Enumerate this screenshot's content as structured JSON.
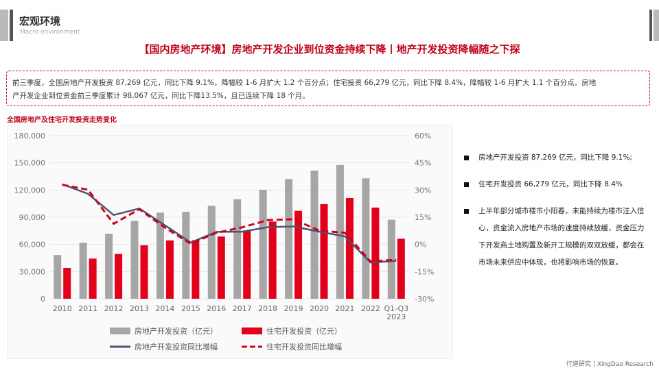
{
  "header": {
    "section_title": "宏观环境",
    "section_subtitle": "Macro environment"
  },
  "headline": "【国内房地产环境】房地产开发企业到位资金持续下降丨地产开发投资降幅随之下探",
  "summary": {
    "line1": "前三季度，全国房地产开发投资 87,269 亿元，同比下降 9.1%，降幅较 1-6 月扩大 1.2 个百分点；住宅投资 66,279 亿元，同比下降 8.4%，降幅较 1-6 月扩大 1.1 个百分点。房地",
    "line2": "产开发企业到位资金前三季度累计 98,067 亿元，同比下降13.5%，且已连续下降 18 个月。"
  },
  "chart_title": "全国房地产及住宅开发投资走势变化",
  "bullets": [
    "房地产开发投资 87,269 亿元，同比下降 9.1%;",
    "住宅开发投资 66,279 亿元，同比下降 8.4%",
    "上半年部分城市楼市小阳春，未能持续为楼市注入信心，资金流入房地产市场的速度持续放缓，资金压力下开发商土地购置及新开工规模的双双放缓，都会在市场未来供应中体现，也将影响市场的恢复。"
  ],
  "footer": "行道研究丨XingDao Research",
  "colors": {
    "accent": "#c0001a",
    "bar_total": "#a6a6a6",
    "bar_residential": "#e2001a",
    "line_total": "#4a5470",
    "line_residential": "#d0021b"
  },
  "chart_data": {
    "type": "bar",
    "categories": [
      "2010",
      "2011",
      "2012",
      "2013",
      "2014",
      "2015",
      "2016",
      "2017",
      "2018",
      "2019",
      "2020",
      "2021",
      "2022",
      "Q1-Q3\n2023"
    ],
    "series": [
      {
        "name": "房地产开发投资（亿元）",
        "kind": "bar",
        "axis": "left",
        "values": [
          48259,
          61797,
          71804,
          86013,
          95036,
          95979,
          102581,
          109799,
          120264,
          132194,
          141443,
          147602,
          132895,
          87269
        ]
      },
      {
        "name": "住宅开发投资（亿元）",
        "kind": "bar",
        "axis": "left",
        "values": [
          34026,
          44320,
          49374,
          58951,
          64352,
          64595,
          68704,
          75148,
          85192,
          97071,
          104446,
          111173,
          100646,
          66279
        ]
      },
      {
        "name": "房地产开发投资同比增幅",
        "kind": "line",
        "axis": "right",
        "values": [
          33.2,
          27.9,
          16.2,
          19.8,
          10.5,
          1.0,
          6.9,
          7.0,
          9.5,
          9.9,
          7.0,
          4.4,
          -10.0,
          -9.1
        ]
      },
      {
        "name": "住宅开发投资同比增幅",
        "kind": "line",
        "axis": "right",
        "values": [
          32.9,
          30.2,
          11.4,
          19.4,
          9.2,
          0.4,
          6.4,
          9.4,
          13.4,
          13.9,
          7.6,
          6.4,
          -9.5,
          -8.4
        ]
      }
    ],
    "left_axis": {
      "ylim": [
        0,
        180000
      ],
      "ticks": [
        "0",
        "30,000",
        "60,000",
        "90,000",
        "120,000",
        "150,000",
        "180,000"
      ]
    },
    "right_axis": {
      "ylim": [
        -30,
        60
      ],
      "ticks": [
        "-30%",
        "-15%",
        "0%",
        "15%",
        "30%",
        "45%",
        "60%"
      ]
    },
    "legend": [
      "房地产开发投资（亿元）",
      "住宅开发投资（亿元）",
      "房地产开发投资同比增幅",
      "住宅开发投资同比增幅"
    ],
    "legend_position": "bottom"
  }
}
